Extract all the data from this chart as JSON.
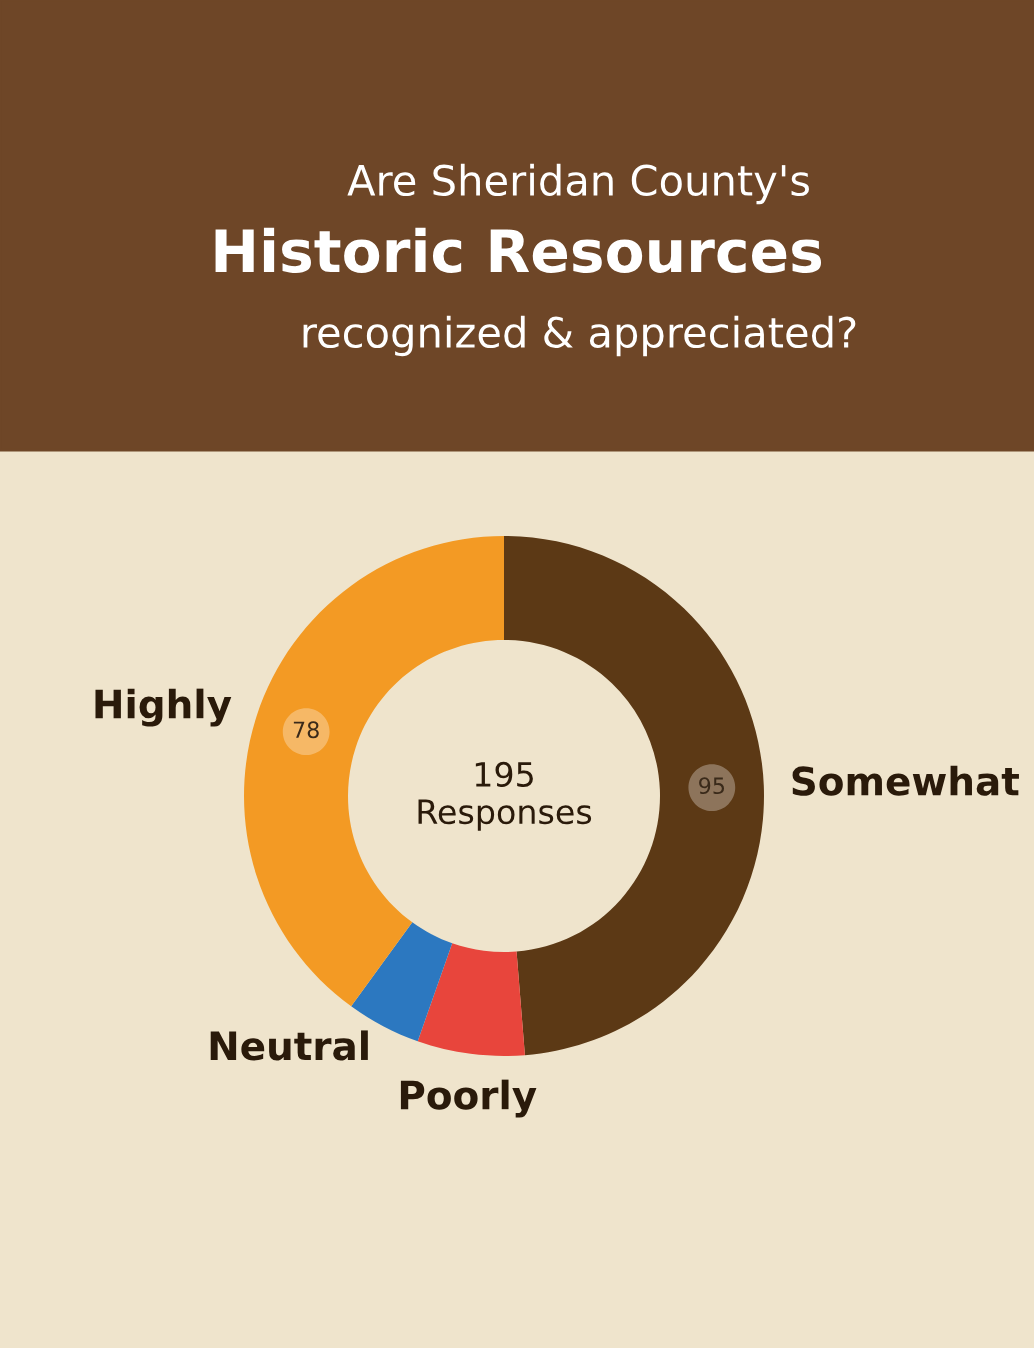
{
  "chart_data": {
    "type": "donut",
    "title": "Are Sheridan County's\nHistoric Resources\nrecognized & appreciated?",
    "categories": [
      "Somewhat",
      "Poorly",
      "Neutral",
      "Highly"
    ],
    "values": [
      95,
      13,
      9,
      78
    ],
    "colors": [
      "#5c3915",
      "#e8453c",
      "#2c78c0",
      "#f39a24"
    ],
    "value_labels": [
      "95",
      null,
      null,
      "78"
    ],
    "annotations": [
      "195\nResponses"
    ],
    "legend": false
  }
}
